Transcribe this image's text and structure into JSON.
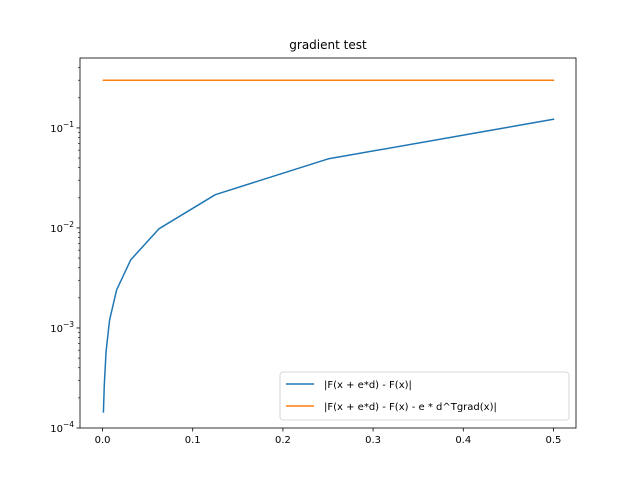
{
  "chart_data": {
    "type": "line",
    "title": "gradient test",
    "xlabel": "",
    "ylabel": "",
    "yscale": "log",
    "xlim": [
      -0.025,
      0.525
    ],
    "ylim": [
      0.0001,
      0.5
    ],
    "x_ticks": [
      {
        "value": 0.0,
        "label": "0.0"
      },
      {
        "value": 0.1,
        "label": "0.1"
      },
      {
        "value": 0.2,
        "label": "0.2"
      },
      {
        "value": 0.3,
        "label": "0.3"
      },
      {
        "value": 0.4,
        "label": "0.4"
      },
      {
        "value": 0.5,
        "label": "0.5"
      }
    ],
    "y_ticks": [
      {
        "value": 0.0001,
        "base": "10",
        "exp": "−4"
      },
      {
        "value": 0.001,
        "base": "10",
        "exp": "−3"
      },
      {
        "value": 0.01,
        "base": "10",
        "exp": "−2"
      },
      {
        "value": 0.1,
        "base": "10",
        "exp": "−1"
      }
    ],
    "grid": false,
    "legend_position": "lower right",
    "series": [
      {
        "name": "|F(x + e*d) - F(x)|",
        "color": "#1f77b4",
        "x": [
          0.00098,
          0.00195,
          0.0039,
          0.0078,
          0.0156,
          0.03125,
          0.0625,
          0.125,
          0.25,
          0.5
        ],
        "y": [
          0.000145,
          0.00027,
          0.00058,
          0.0012,
          0.0024,
          0.0048,
          0.0098,
          0.0215,
          0.049,
          0.122
        ]
      },
      {
        "name": "|F(x + e*d) - F(x) - e * d^Tgrad(x)|",
        "color": "#ff7f0e",
        "x": [
          0.00098,
          0.00195,
          0.0039,
          0.0078,
          0.0156,
          0.03125,
          0.0625,
          0.125,
          0.25,
          0.5
        ],
        "y": [
          0.3,
          0.3,
          0.3,
          0.3,
          0.3,
          0.3,
          0.3,
          0.3,
          0.3,
          0.3
        ]
      }
    ]
  }
}
